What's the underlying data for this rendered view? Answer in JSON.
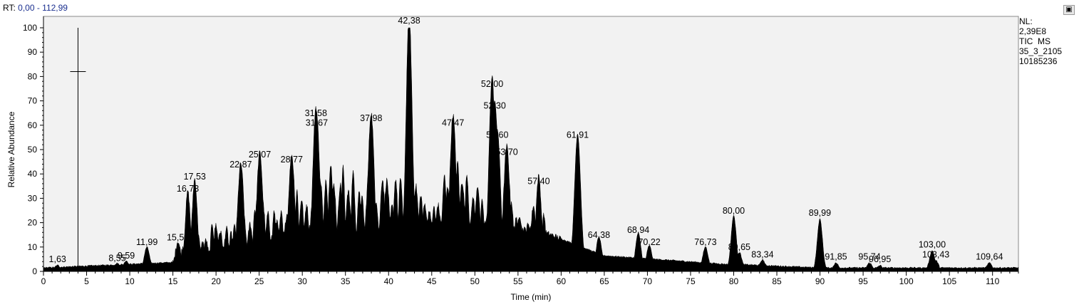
{
  "header": {
    "rt_label": "RT:",
    "rt_range": "0,00 - 112,99"
  },
  "side_info": [
    "NL:",
    "2,39E8",
    "TIC  MS",
    "35_3_2105",
    "10185236"
  ],
  "pin_icon": "pin-icon",
  "chart_data": {
    "type": "line",
    "title": "",
    "xlabel": "Time (min)",
    "ylabel": "Relative Abundance",
    "xlim": [
      0,
      113
    ],
    "ylim": [
      0,
      100
    ],
    "x_ticks": [
      0,
      5,
      10,
      15,
      20,
      25,
      30,
      35,
      40,
      45,
      50,
      55,
      60,
      65,
      70,
      75,
      80,
      85,
      90,
      95,
      100,
      105,
      110
    ],
    "y_ticks": [
      0,
      10,
      20,
      30,
      40,
      50,
      60,
      70,
      80,
      90,
      100
    ],
    "fill_color": "#000000",
    "grid": false,
    "marker": {
      "x": 4.0,
      "y": 82
    },
    "peaks": [
      {
        "x": 1.63,
        "y": 2,
        "label": "1,63"
      },
      {
        "x": 8.55,
        "y": 2.5,
        "label": "8,55"
      },
      {
        "x": 9.59,
        "y": 3.5,
        "label": "9,59"
      },
      {
        "x": 11.99,
        "y": 9,
        "label": "11,99"
      },
      {
        "x": 15.58,
        "y": 11,
        "label": "15,58"
      },
      {
        "x": 16.73,
        "y": 31,
        "label": "16,73"
      },
      {
        "x": 17.53,
        "y": 36,
        "label": "17,53"
      },
      {
        "x": 22.87,
        "y": 41,
        "label": "22,87"
      },
      {
        "x": 25.07,
        "y": 45,
        "label": "25,07"
      },
      {
        "x": 28.77,
        "y": 43,
        "label": "28,77"
      },
      {
        "x": 31.58,
        "y": 62,
        "label": "31,58"
      },
      {
        "x": 31.67,
        "y": 58,
        "label": "31,67"
      },
      {
        "x": 37.98,
        "y": 60,
        "label": "37,98"
      },
      {
        "x": 42.38,
        "y": 100,
        "label": "42,38"
      },
      {
        "x": 47.47,
        "y": 58,
        "label": "47,47"
      },
      {
        "x": 52.0,
        "y": 74,
        "label": "52,00"
      },
      {
        "x": 52.3,
        "y": 65,
        "label": "52,30"
      },
      {
        "x": 52.6,
        "y": 53,
        "label": "52,60"
      },
      {
        "x": 53.7,
        "y": 46,
        "label": "53,70"
      },
      {
        "x": 57.4,
        "y": 34,
        "label": "57,40"
      },
      {
        "x": 61.91,
        "y": 53,
        "label": "61,91"
      },
      {
        "x": 64.38,
        "y": 12,
        "label": "64,38"
      },
      {
        "x": 68.94,
        "y": 14,
        "label": "68,94"
      },
      {
        "x": 70.22,
        "y": 9,
        "label": "70,22"
      },
      {
        "x": 76.73,
        "y": 9,
        "label": "76,73"
      },
      {
        "x": 80.0,
        "y": 22,
        "label": "80,00"
      },
      {
        "x": 80.65,
        "y": 7,
        "label": "80,65"
      },
      {
        "x": 83.34,
        "y": 4,
        "label": "83,34"
      },
      {
        "x": 89.99,
        "y": 21,
        "label": "89,99"
      },
      {
        "x": 91.85,
        "y": 3,
        "label": "91,85"
      },
      {
        "x": 95.74,
        "y": 3,
        "label": "95,74"
      },
      {
        "x": 96.95,
        "y": 2,
        "label": "96,95"
      },
      {
        "x": 103.0,
        "y": 8,
        "label": "103,00"
      },
      {
        "x": 103.43,
        "y": 4,
        "label": "103,43"
      },
      {
        "x": 109.64,
        "y": 3,
        "label": "109,64"
      }
    ]
  }
}
